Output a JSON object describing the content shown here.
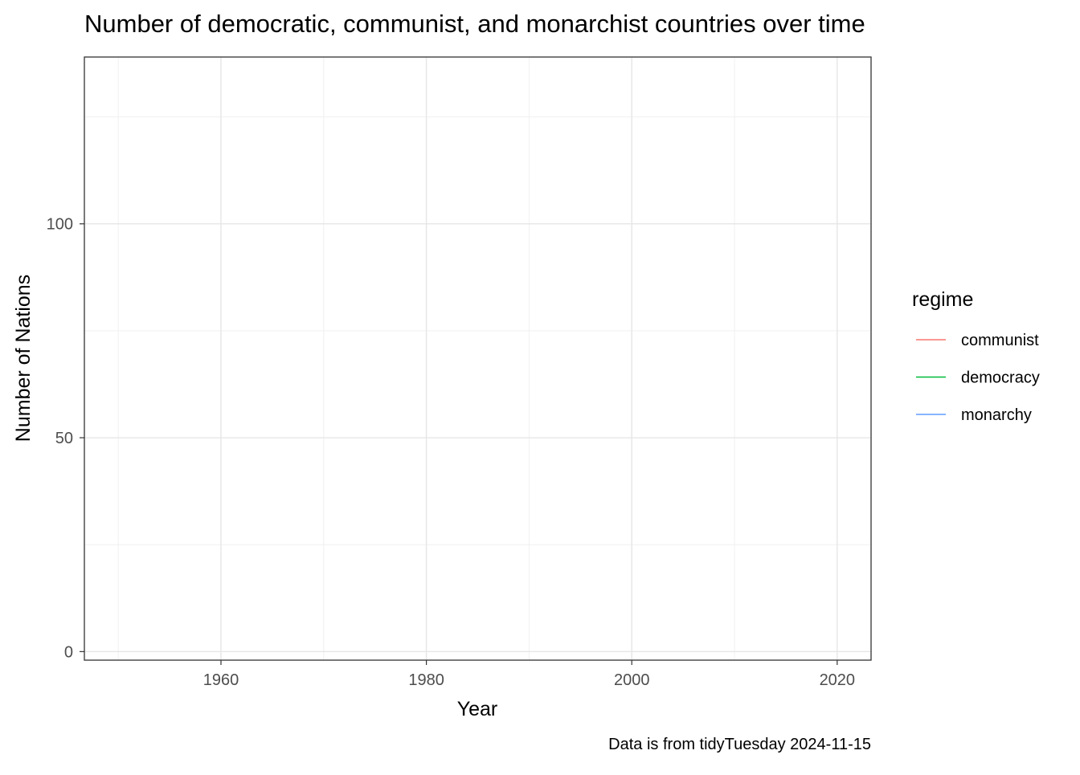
{
  "chart_data": {
    "type": "line",
    "title": "Number of democratic, communist, and monarchist countries over time",
    "xlabel": "Year",
    "ylabel": "Number of Nations",
    "caption": "Data is from tidyTuesday 2024-11-15",
    "xlim": [
      1946.7,
      2023.3
    ],
    "ylim": [
      -2,
      139
    ],
    "x_ticks": [
      1960,
      1980,
      2000,
      2020
    ],
    "x_tick_labels": [
      "1960",
      "1980",
      "2000",
      "2020"
    ],
    "x_minor_ticks": [
      1950,
      1970,
      1990,
      2010
    ],
    "y_ticks": [
      0,
      50,
      100
    ],
    "y_tick_labels": [
      "0",
      "50",
      "100"
    ],
    "y_minor_ticks": [
      25,
      75,
      125
    ],
    "grid": true,
    "legend": {
      "title": "regime",
      "position": "right",
      "entries": [
        {
          "label": "communist",
          "color": "#F8766D"
        },
        {
          "label": "democracy",
          "color": "#00BA38"
        },
        {
          "label": "monarchy",
          "color": "#619CFF"
        }
      ]
    },
    "series": [
      {
        "name": "communist",
        "color": "#F8766D",
        "x": [],
        "y": []
      },
      {
        "name": "democracy",
        "color": "#00BA38",
        "x": [],
        "y": []
      },
      {
        "name": "monarchy",
        "color": "#619CFF",
        "x": [],
        "y": []
      }
    ]
  }
}
